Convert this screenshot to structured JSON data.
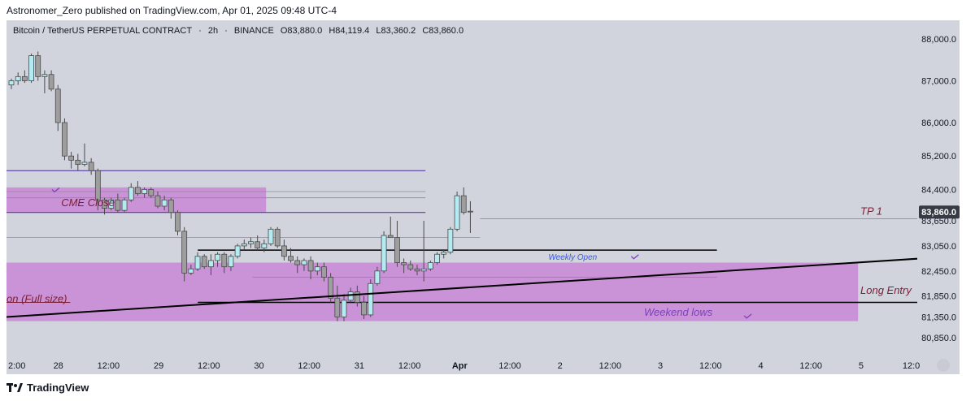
{
  "header": {
    "publisher_line": "Astronomer_Zero published on TradingView.com, Apr 01, 2025 09:48 UTC-4"
  },
  "symbol": {
    "name": "Bitcoin / TetherUS PERPETUAL CONTRACT",
    "separator": "·",
    "interval": "2h",
    "exchange": "BINANCE",
    "open": "O83,880.0",
    "high": "H84,119.4",
    "low": "L83,360.2",
    "close": "C83,860.0"
  },
  "footer": {
    "brand": "TradingView"
  },
  "colors": {
    "background": "#d1d4dc",
    "candle_up": "#b2ebf2",
    "candle_down": "#9e9e9e",
    "candle_border": "#4a4a4a",
    "zone": "#c77dd6",
    "level_blue": "#4527a0",
    "trendline": "#000000",
    "label_dark_red": "#7b1d35",
    "label_purple": "#7e3fbf",
    "label_blue": "#3b5bdb",
    "price_badge": "#363a45"
  },
  "chart_data": {
    "type": "candlestick",
    "y_axis": {
      "ticks": [
        88000,
        87000,
        86000,
        85200,
        84400,
        83650,
        83050,
        82450,
        81850,
        81350,
        80850
      ],
      "tick_labels": [
        "88,000.0",
        "87,000.0",
        "86,000.0",
        "85,200.0",
        "84,400.0",
        "83,650.0",
        "83,050.0",
        "82,450.0",
        "81,850.0",
        "81,350.0",
        "80,850.0"
      ]
    },
    "x_axis": {
      "tick_labels": [
        "2:00",
        "28",
        "12:00",
        "29",
        "12:00",
        "30",
        "12:00",
        "31",
        "12:00",
        "Apr",
        "12:00",
        "2",
        "12:00",
        "3",
        "12:00",
        "4",
        "12:00",
        "5",
        "12:0"
      ]
    },
    "current_price": {
      "value": 83860,
      "label": "83,860.0"
    },
    "candles": [
      {
        "o": 86900,
        "h": 87050,
        "l": 86800,
        "c": 87000
      },
      {
        "o": 87000,
        "h": 87200,
        "l": 86900,
        "c": 87100
      },
      {
        "o": 87100,
        "h": 87250,
        "l": 86950,
        "c": 87000
      },
      {
        "o": 87000,
        "h": 87650,
        "l": 86950,
        "c": 87600
      },
      {
        "o": 87600,
        "h": 87700,
        "l": 87000,
        "c": 87100
      },
      {
        "o": 87100,
        "h": 87250,
        "l": 86700,
        "c": 87150
      },
      {
        "o": 87150,
        "h": 87250,
        "l": 86750,
        "c": 86800
      },
      {
        "o": 86800,
        "h": 86900,
        "l": 85800,
        "c": 86000
      },
      {
        "o": 86000,
        "h": 86100,
        "l": 85100,
        "c": 85200
      },
      {
        "o": 85200,
        "h": 85300,
        "l": 84900,
        "c": 85100
      },
      {
        "o": 85100,
        "h": 85250,
        "l": 84850,
        "c": 85000
      },
      {
        "o": 85000,
        "h": 85500,
        "l": 84950,
        "c": 85050
      },
      {
        "o": 85050,
        "h": 85150,
        "l": 84750,
        "c": 84850
      },
      {
        "o": 84850,
        "h": 84900,
        "l": 83900,
        "c": 84150
      },
      {
        "o": 84150,
        "h": 84200,
        "l": 83800,
        "c": 83950
      },
      {
        "o": 83950,
        "h": 84200,
        "l": 83900,
        "c": 84150
      },
      {
        "o": 84150,
        "h": 84300,
        "l": 83850,
        "c": 83900
      },
      {
        "o": 83900,
        "h": 84200,
        "l": 83850,
        "c": 84150
      },
      {
        "o": 84150,
        "h": 84550,
        "l": 84100,
        "c": 84450
      },
      {
        "o": 84450,
        "h": 84600,
        "l": 84250,
        "c": 84300
      },
      {
        "o": 84300,
        "h": 84450,
        "l": 84200,
        "c": 84400
      },
      {
        "o": 84400,
        "h": 84450,
        "l": 84200,
        "c": 84250
      },
      {
        "o": 84250,
        "h": 84350,
        "l": 83950,
        "c": 84000
      },
      {
        "o": 84000,
        "h": 84250,
        "l": 83900,
        "c": 84150
      },
      {
        "o": 84150,
        "h": 84200,
        "l": 83700,
        "c": 83850
      },
      {
        "o": 83850,
        "h": 83900,
        "l": 83300,
        "c": 83400
      },
      {
        "o": 83400,
        "h": 83500,
        "l": 82200,
        "c": 82400
      },
      {
        "o": 82400,
        "h": 82600,
        "l": 82350,
        "c": 82500
      },
      {
        "o": 82500,
        "h": 82900,
        "l": 82450,
        "c": 82800
      },
      {
        "o": 82800,
        "h": 82850,
        "l": 82500,
        "c": 82550
      },
      {
        "o": 82550,
        "h": 82850,
        "l": 82350,
        "c": 82700
      },
      {
        "o": 82700,
        "h": 82900,
        "l": 82550,
        "c": 82850
      },
      {
        "o": 82850,
        "h": 82900,
        "l": 82400,
        "c": 82550
      },
      {
        "o": 82550,
        "h": 82850,
        "l": 82450,
        "c": 82800
      },
      {
        "o": 82800,
        "h": 83100,
        "l": 82750,
        "c": 83050
      },
      {
        "o": 83050,
        "h": 83200,
        "l": 82950,
        "c": 83100
      },
      {
        "o": 83100,
        "h": 83250,
        "l": 83000,
        "c": 83150
      },
      {
        "o": 83150,
        "h": 83300,
        "l": 82950,
        "c": 83000
      },
      {
        "o": 83000,
        "h": 83200,
        "l": 82900,
        "c": 83100
      },
      {
        "o": 83100,
        "h": 83500,
        "l": 83050,
        "c": 83450
      },
      {
        "o": 83450,
        "h": 83500,
        "l": 83000,
        "c": 83050
      },
      {
        "o": 83050,
        "h": 83200,
        "l": 82700,
        "c": 82800
      },
      {
        "o": 82800,
        "h": 83000,
        "l": 82650,
        "c": 82700
      },
      {
        "o": 82700,
        "h": 82800,
        "l": 82400,
        "c": 82600
      },
      {
        "o": 82600,
        "h": 82750,
        "l": 82450,
        "c": 82700
      },
      {
        "o": 82700,
        "h": 82800,
        "l": 82250,
        "c": 82450
      },
      {
        "o": 82450,
        "h": 82650,
        "l": 82350,
        "c": 82550
      },
      {
        "o": 82550,
        "h": 82650,
        "l": 82200,
        "c": 82300
      },
      {
        "o": 82300,
        "h": 82400,
        "l": 81700,
        "c": 81800
      },
      {
        "o": 81800,
        "h": 82100,
        "l": 81250,
        "c": 81350
      },
      {
        "o": 81350,
        "h": 81900,
        "l": 81250,
        "c": 81750
      },
      {
        "o": 81750,
        "h": 82050,
        "l": 81700,
        "c": 81950
      },
      {
        "o": 81950,
        "h": 82100,
        "l": 81600,
        "c": 81700
      },
      {
        "o": 81700,
        "h": 81850,
        "l": 81300,
        "c": 81400
      },
      {
        "o": 81400,
        "h": 82250,
        "l": 81350,
        "c": 82150
      },
      {
        "o": 82150,
        "h": 82550,
        "l": 82100,
        "c": 82450
      },
      {
        "o": 82450,
        "h": 83400,
        "l": 82400,
        "c": 83300
      },
      {
        "o": 83300,
        "h": 83750,
        "l": 83250,
        "c": 83250
      },
      {
        "o": 83250,
        "h": 83650,
        "l": 82550,
        "c": 82650
      },
      {
        "o": 82650,
        "h": 82750,
        "l": 82400,
        "c": 82600
      },
      {
        "o": 82600,
        "h": 82700,
        "l": 82450,
        "c": 82500
      },
      {
        "o": 82500,
        "h": 82600,
        "l": 82350,
        "c": 82450
      },
      {
        "o": 82450,
        "h": 83650,
        "l": 82200,
        "c": 82500
      },
      {
        "o": 82500,
        "h": 82700,
        "l": 82450,
        "c": 82650
      },
      {
        "o": 82650,
        "h": 82900,
        "l": 82600,
        "c": 82850
      },
      {
        "o": 82850,
        "h": 82950,
        "l": 82750,
        "c": 82900
      },
      {
        "o": 82900,
        "h": 83500,
        "l": 82850,
        "c": 83450
      },
      {
        "o": 83450,
        "h": 84350,
        "l": 83400,
        "c": 84250
      },
      {
        "o": 84250,
        "h": 84450,
        "l": 83800,
        "c": 83850
      },
      {
        "o": 83880,
        "h": 84119,
        "l": 83360,
        "c": 83860
      }
    ],
    "levels": [
      {
        "y": 84850,
        "x0": 0,
        "x1": 0.46,
        "color": "#4527a0",
        "width": 1
      },
      {
        "y": 84350,
        "x0": 0,
        "x1": 0.46,
        "color": "#8a8a9a",
        "width": 0.8
      },
      {
        "y": 84200,
        "x0": 0,
        "x1": 0.46,
        "color": "#8a8a9a",
        "width": 0.8
      },
      {
        "y": 83850,
        "x0": 0,
        "x1": 0.46,
        "color": "#4527a0",
        "width": 1
      },
      {
        "y": 83250,
        "x0": 0,
        "x1": 0.52,
        "color": "#8a8a9a",
        "width": 0.8
      },
      {
        "y": 83700,
        "x0": 0.52,
        "x1": 1.07,
        "color": "#8a8a9a",
        "width": 0.8
      },
      {
        "y": 82950,
        "x0": 0.21,
        "x1": 0.78,
        "color": "#000000",
        "width": 1.5
      },
      {
        "y": 82300,
        "x0": 0.27,
        "x1": 0.78,
        "color": "#8a8a9a",
        "width": 0.8
      },
      {
        "y": 81700,
        "x0": 0.21,
        "x1": 1.12,
        "color": "#000000",
        "width": 1.5
      },
      {
        "y": 81700,
        "x0": 0,
        "x1": 0.07,
        "color": "#7b1d35",
        "width": 1
      }
    ],
    "zones": [
      {
        "x0": 0,
        "x1": 0.285,
        "y_top": 84450,
        "y_bottom": 83850
      },
      {
        "x0": 0,
        "x1": 0.935,
        "y_top": 82650,
        "y_bottom": 81250
      }
    ],
    "trendline": {
      "x0": 0,
      "y0": 81350,
      "x1": 1.22,
      "y1": 83050
    },
    "annotations": [
      {
        "text": "CME Close",
        "x": 0.06,
        "y": 84000,
        "color": "#7b1d35",
        "size": 13
      },
      {
        "text": "on (Full size)",
        "x": 0.0,
        "y": 81700,
        "color": "#7b1d35",
        "size": 13
      },
      {
        "text": "TP 1",
        "x": 1.05,
        "y": 83800,
        "color": "#7b1d35",
        "size": 13
      },
      {
        "text": "Long Entry",
        "x": 1.04,
        "y": 81900,
        "color": "#7b1d35",
        "size": 13
      },
      {
        "text": "Weekly Open",
        "x": 0.595,
        "y": 82720,
        "color": "#3b5bdb",
        "size": 10
      },
      {
        "text": "Weekend lows",
        "x": 0.7,
        "y": 81380,
        "color": "#7e3fbf",
        "size": 13
      }
    ],
    "checkmarks": [
      {
        "x": 0.05,
        "y": 84400
      },
      {
        "x": 0.686,
        "y": 82800
      },
      {
        "x": 0.81,
        "y": 81380
      }
    ]
  }
}
